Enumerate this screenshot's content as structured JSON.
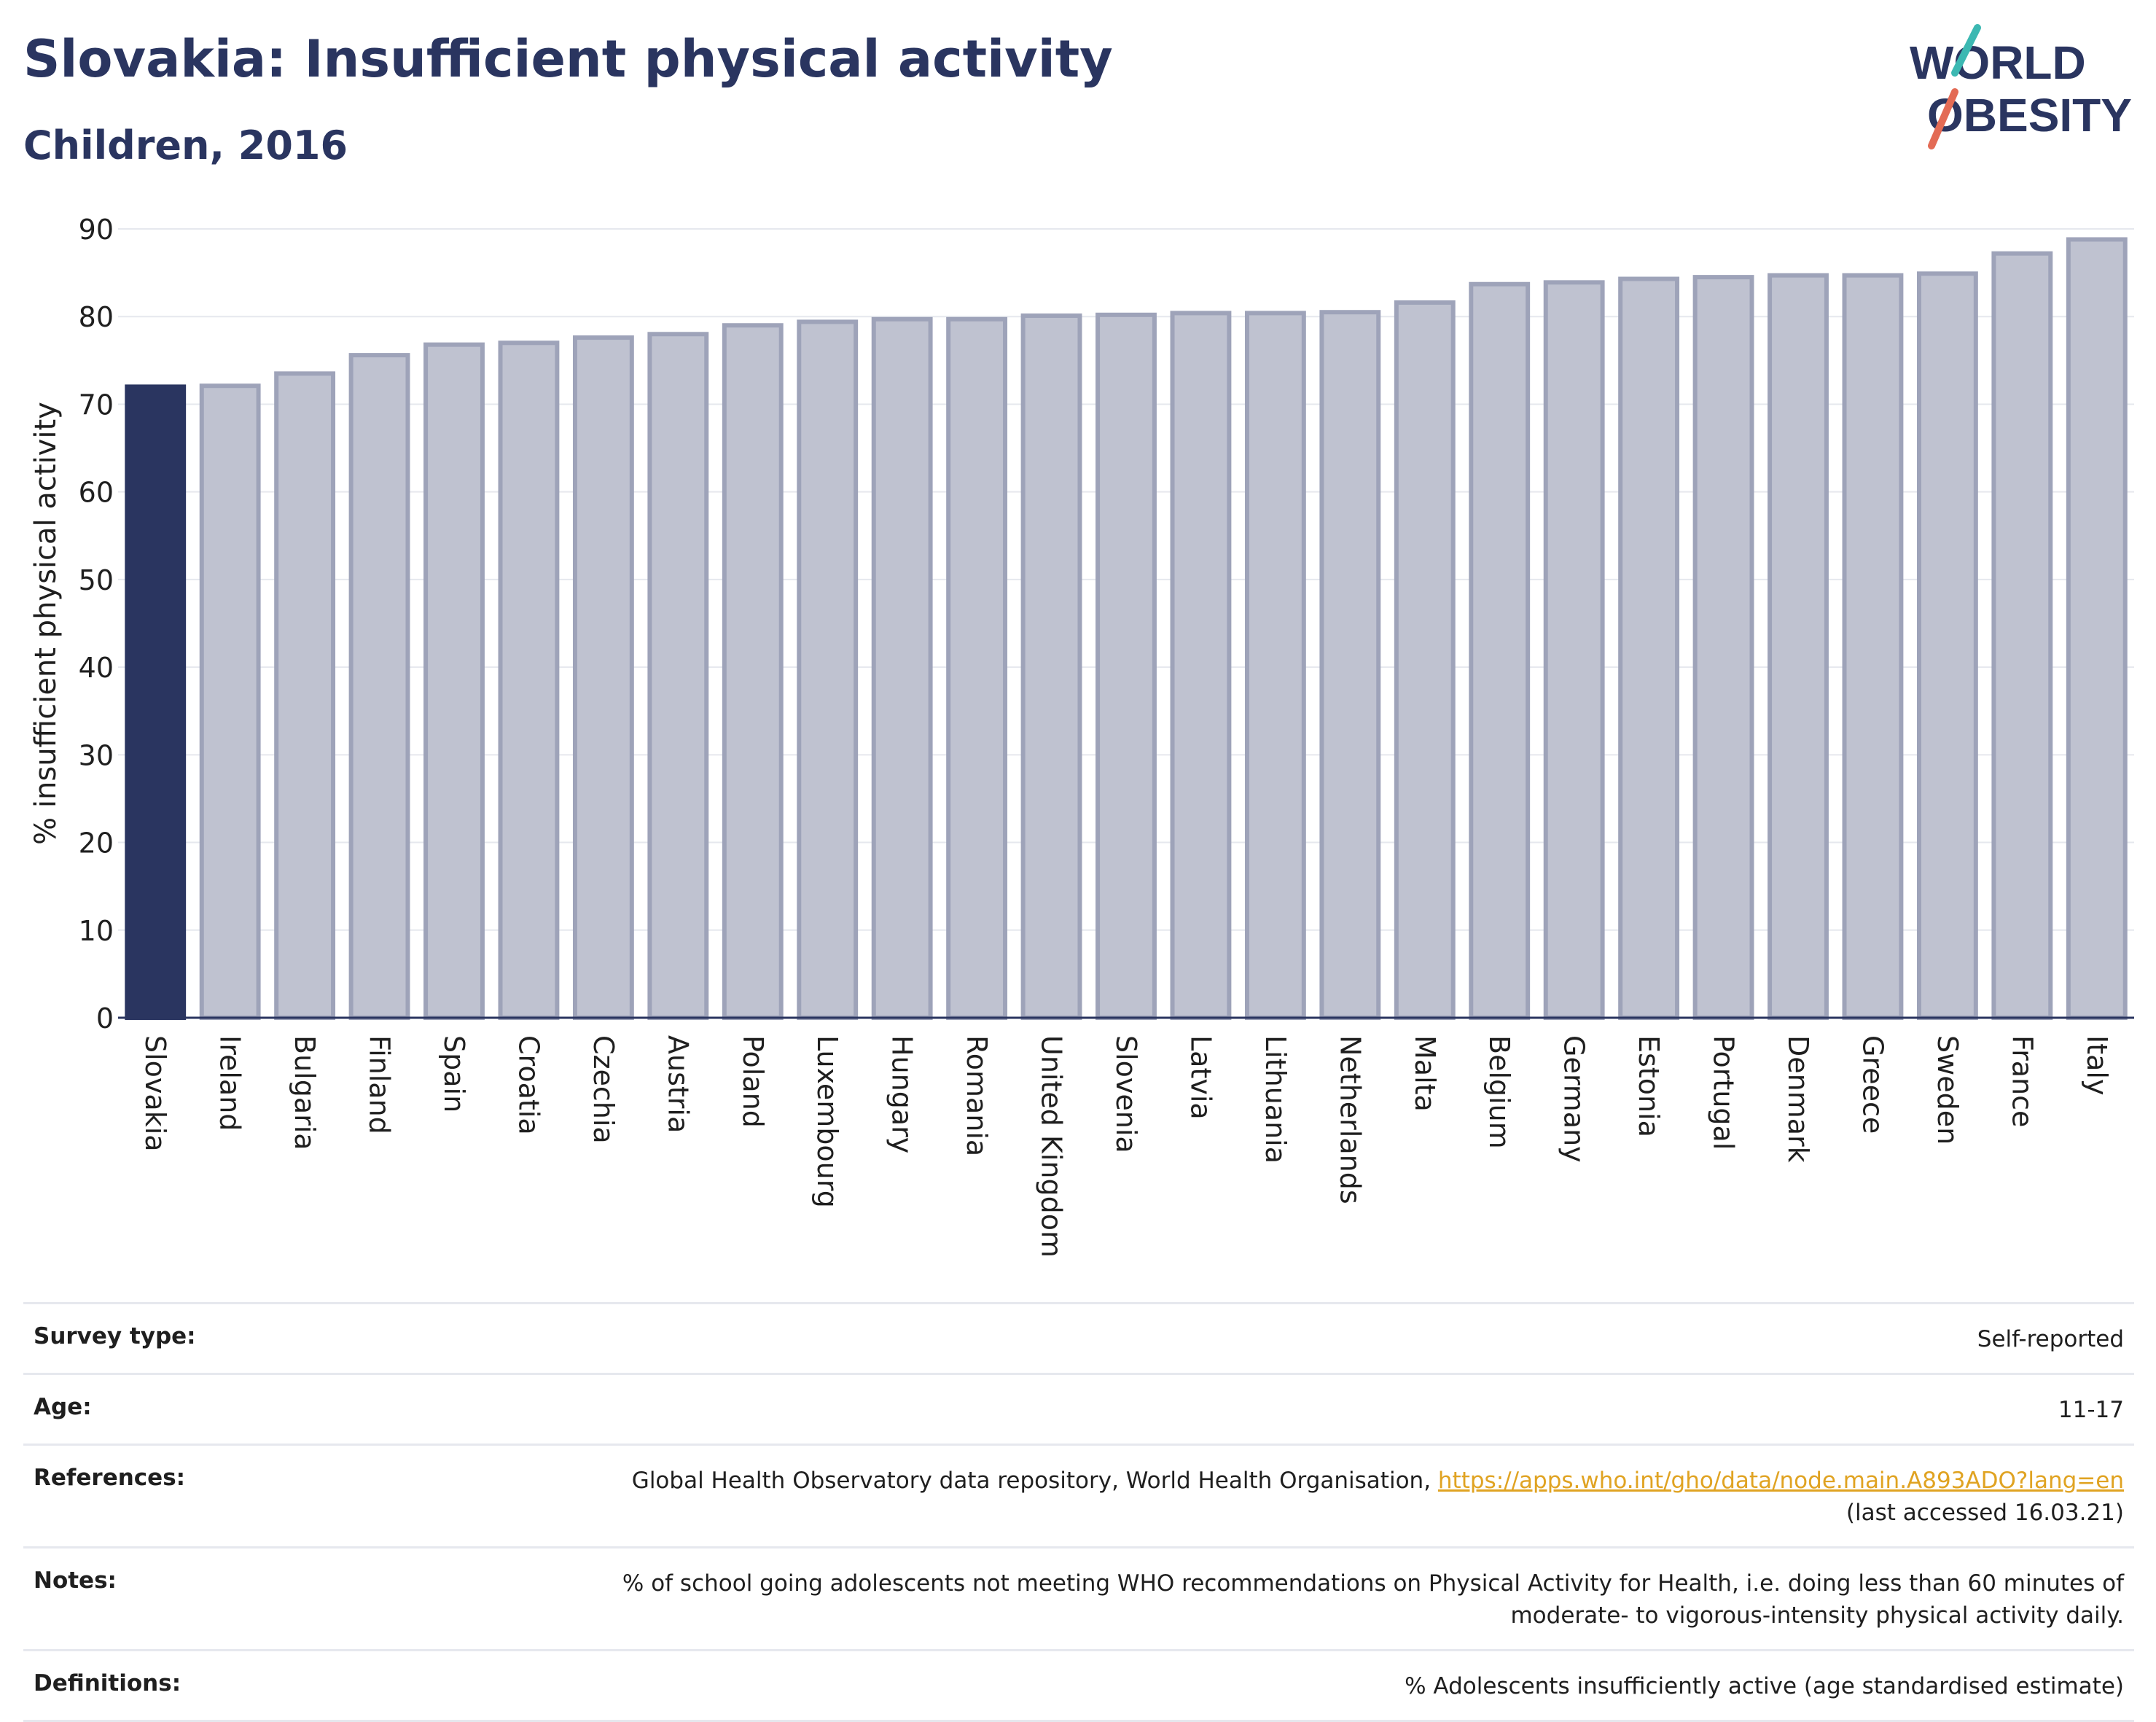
{
  "header": {
    "title": "Slovakia: Insufficient physical activity",
    "subtitle": "Children, 2016",
    "logo_line1": "WORLD",
    "logo_line2": "OBESITY"
  },
  "colors": {
    "highlight": "#2a3560",
    "bar_fill": "#bfc2d0",
    "bar_stroke": "#9ea3b9",
    "grid": "#e6e8ee",
    "link": "#e0a322",
    "logo_teal": "#3cb8b2",
    "logo_red": "#e36b55"
  },
  "chart_data": {
    "type": "bar",
    "ylabel": "% insufficient physical activity",
    "ylim": [
      0,
      90
    ],
    "yticks": [
      0,
      10,
      20,
      30,
      40,
      50,
      60,
      70,
      80,
      90
    ],
    "grid": true,
    "highlight_category": "Slovakia",
    "categories": [
      "Slovakia",
      "Ireland",
      "Bulgaria",
      "Finland",
      "Spain",
      "Croatia",
      "Czechia",
      "Austria",
      "Poland",
      "Luxembourg",
      "Hungary",
      "Romania",
      "United Kingdom",
      "Slovenia",
      "Latvia",
      "Lithuania",
      "Netherlands",
      "Malta",
      "Belgium",
      "Germany",
      "Estonia",
      "Portugal",
      "Denmark",
      "Greece",
      "Sweden",
      "France",
      "Italy"
    ],
    "values": [
      72.0,
      72.1,
      73.5,
      75.6,
      76.8,
      77.0,
      77.6,
      78.0,
      79.0,
      79.4,
      79.7,
      79.7,
      80.1,
      80.2,
      80.4,
      80.4,
      80.5,
      81.6,
      83.7,
      83.9,
      84.3,
      84.5,
      84.7,
      84.7,
      84.9,
      87.2,
      88.8
    ]
  },
  "info": {
    "survey_type_label": "Survey type:",
    "survey_type_value": "Self-reported",
    "age_label": "Age:",
    "age_value": "11-17",
    "references_label": "References:",
    "references_text": "Global Health Observatory data repository, World Health Organisation, ",
    "references_link": "https://apps.who.int/gho/data/node.main.A893ADO?lang=en",
    "references_accessed": "(last accessed 16.03.21)",
    "notes_label": "Notes:",
    "notes_line1": "% of school going adolescents not meeting WHO recommendations on Physical Activity for Health, i.e. doing less than 60 minutes of",
    "notes_line2": "moderate- to vigorous-intensity physical activity daily.",
    "definitions_label": "Definitions:",
    "definitions_value": "% Adolescents insufficiently active (age standardised estimate)"
  }
}
